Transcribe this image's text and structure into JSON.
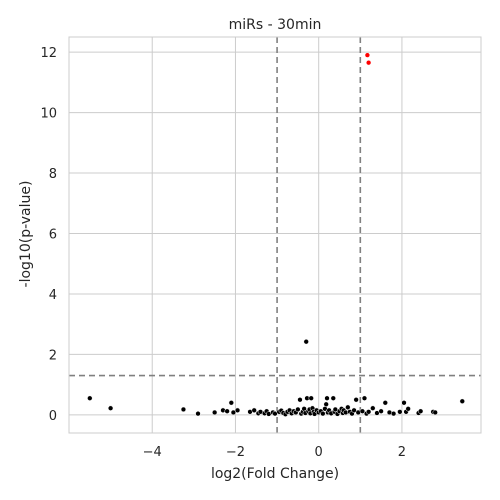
{
  "chart_data": {
    "type": "scatter",
    "title": "miRs - 30min",
    "xlabel": "log2(Fold Change)",
    "ylabel": "-log10(p-value)",
    "xlim": [
      -6.0,
      3.9
    ],
    "ylim": [
      -0.6,
      12.5
    ],
    "xticks": [
      -4,
      -2,
      0,
      2
    ],
    "yticks": [
      0,
      2,
      4,
      6,
      8,
      10,
      12
    ],
    "grid": true,
    "thresholds": {
      "fold_change_x": [
        -1,
        1
      ],
      "pvalue_y": 1.3
    },
    "colors": {
      "significant": "#ff0000",
      "not_significant": "#000000",
      "threshold_line": "#808080",
      "grid": "#cccccc",
      "frame": "#cccccc"
    },
    "series": [
      {
        "points": [
          [
            1.17,
            11.9
          ],
          [
            1.2,
            11.65
          ]
        ]
      },
      {
        "points": [
          [
            -5.5,
            0.55
          ],
          [
            -5.0,
            0.22
          ],
          [
            -3.25,
            0.18
          ],
          [
            -2.9,
            0.04
          ],
          [
            -2.5,
            0.08
          ],
          [
            -2.3,
            0.15
          ],
          [
            -2.2,
            0.12
          ],
          [
            -2.1,
            0.4
          ],
          [
            -2.05,
            0.08
          ],
          [
            -1.95,
            0.15
          ],
          [
            -1.65,
            0.1
          ],
          [
            -1.55,
            0.15
          ],
          [
            -1.45,
            0.05
          ],
          [
            -1.4,
            0.1
          ],
          [
            -1.3,
            0.05
          ],
          [
            -1.25,
            0.12
          ],
          [
            -1.2,
            0.03
          ],
          [
            -1.1,
            0.08
          ],
          [
            -1.05,
            0.04
          ],
          [
            -0.95,
            0.1
          ],
          [
            -0.9,
            0.14
          ],
          [
            -0.85,
            0.06
          ],
          [
            -0.8,
            0.02
          ],
          [
            -0.75,
            0.1
          ],
          [
            -0.7,
            0.15
          ],
          [
            -0.65,
            0.05
          ],
          [
            -0.6,
            0.12
          ],
          [
            -0.55,
            0.08
          ],
          [
            -0.5,
            0.18
          ],
          [
            -0.45,
            0.5
          ],
          [
            -0.42,
            0.04
          ],
          [
            -0.38,
            0.1
          ],
          [
            -0.35,
            0.2
          ],
          [
            -0.32,
            0.06
          ],
          [
            -0.3,
            2.42
          ],
          [
            -0.28,
            0.55
          ],
          [
            -0.25,
            0.12
          ],
          [
            -0.22,
            0.18
          ],
          [
            -0.2,
            0.05
          ],
          [
            -0.18,
            0.55
          ],
          [
            -0.15,
            0.22
          ],
          [
            -0.12,
            0.1
          ],
          [
            -0.1,
            0.03
          ],
          [
            -0.05,
            0.15
          ],
          [
            0.0,
            0.08
          ],
          [
            0.05,
            0.12
          ],
          [
            0.1,
            0.04
          ],
          [
            0.15,
            0.2
          ],
          [
            0.18,
            0.35
          ],
          [
            0.2,
            0.55
          ],
          [
            0.22,
            0.08
          ],
          [
            0.25,
            0.15
          ],
          [
            0.3,
            0.05
          ],
          [
            0.35,
            0.55
          ],
          [
            0.38,
            0.1
          ],
          [
            0.4,
            0.18
          ],
          [
            0.45,
            0.03
          ],
          [
            0.5,
            0.12
          ],
          [
            0.55,
            0.2
          ],
          [
            0.58,
            0.06
          ],
          [
            0.6,
            0.15
          ],
          [
            0.65,
            0.08
          ],
          [
            0.7,
            0.25
          ],
          [
            0.75,
            0.1
          ],
          [
            0.8,
            0.04
          ],
          [
            0.85,
            0.15
          ],
          [
            0.9,
            0.5
          ],
          [
            0.95,
            0.08
          ],
          [
            1.05,
            0.12
          ],
          [
            1.1,
            0.55
          ],
          [
            1.15,
            0.04
          ],
          [
            1.2,
            0.1
          ],
          [
            1.3,
            0.22
          ],
          [
            1.4,
            0.06
          ],
          [
            1.5,
            0.12
          ],
          [
            1.6,
            0.4
          ],
          [
            1.7,
            0.08
          ],
          [
            1.8,
            0.04
          ],
          [
            1.95,
            0.1
          ],
          [
            2.05,
            0.4
          ],
          [
            2.1,
            0.1
          ],
          [
            2.15,
            0.2
          ],
          [
            2.4,
            0.06
          ],
          [
            2.45,
            0.12
          ],
          [
            2.75,
            0.1
          ],
          [
            2.8,
            0.08
          ],
          [
            3.45,
            0.45
          ]
        ]
      }
    ]
  }
}
